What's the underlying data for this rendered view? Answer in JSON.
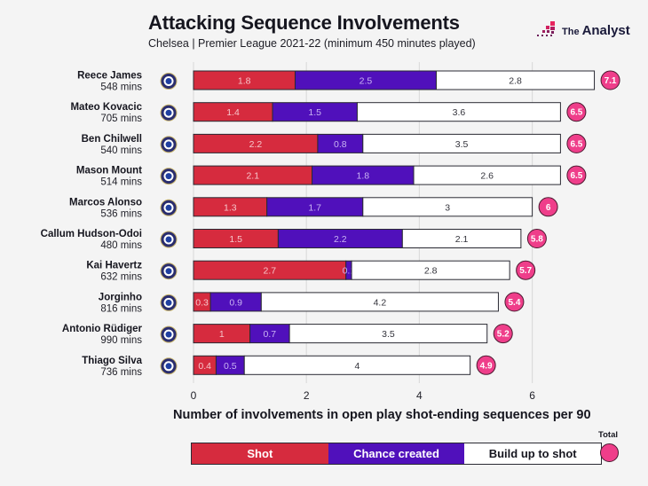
{
  "header": {
    "title": "Attacking Sequence Involvements",
    "subtitle": "Chelsea | Premier League 2021-22 (minimum 450 minutes played)",
    "logo_prefix": "The",
    "logo_name": "Analyst"
  },
  "colors": {
    "shot": "#d62b3e",
    "chance_created": "#5010bb",
    "build_up": "#ffffff",
    "total": "#ef3e8a",
    "background": "#f4f4f4"
  },
  "legend": {
    "shot": "Shot",
    "chance_created": "Chance created",
    "build_up": "Build up to shot",
    "total": "Total"
  },
  "chart_data": {
    "type": "bar",
    "orientation": "horizontal",
    "stacked": true,
    "title": "Attacking Sequence Involvements",
    "subtitle": "Chelsea | Premier League 2021-22 (minimum 450 minutes played)",
    "xlabel": "Number of involvements in open play shot-ending sequences per 90",
    "ylabel": "",
    "xlim": [
      0,
      7.1
    ],
    "xticks": [
      0,
      2,
      4,
      6
    ],
    "grid": "vertical",
    "legend_position": "bottom",
    "categories": [
      "Reece James",
      "Mateo Kovacic",
      "Ben Chilwell",
      "Mason Mount",
      "Marcos Alonso",
      "Callum Hudson-Odoi",
      "Kai Havertz",
      "Jorginho",
      "Antonio Rüdiger",
      "Thiago Silva"
    ],
    "minutes": [
      "548 mins",
      "705 mins",
      "540 mins",
      "514 mins",
      "536 mins",
      "480 mins",
      "632 mins",
      "816 mins",
      "990 mins",
      "736 mins"
    ],
    "series": [
      {
        "name": "Shot",
        "values": [
          1.8,
          1.4,
          2.2,
          2.1,
          1.3,
          1.5,
          2.7,
          0.3,
          1,
          0.4
        ]
      },
      {
        "name": "Chance created",
        "values": [
          2.5,
          1.5,
          0.8,
          1.8,
          1.7,
          2.2,
          0.1,
          0.9,
          0.7,
          0.5
        ]
      },
      {
        "name": "Build up to shot",
        "values": [
          2.8,
          3.6,
          3.5,
          2.6,
          3,
          2.1,
          2.8,
          4.2,
          3.5,
          4
        ]
      }
    ],
    "totals": [
      7.1,
      6.5,
      6.5,
      6.5,
      6,
      5.8,
      5.7,
      5.4,
      5.2,
      4.9
    ]
  }
}
